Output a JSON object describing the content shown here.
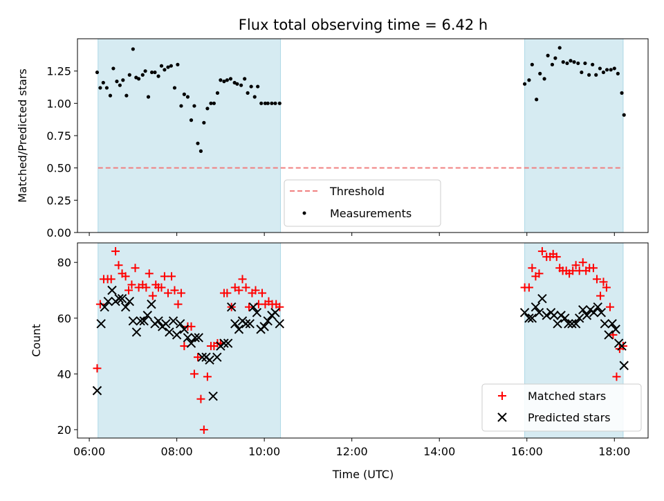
{
  "chart_data": [
    {
      "type": "scatter",
      "title": "Flux total observing time = 6.42 h",
      "xlabel": "",
      "ylabel": "Matched/Predicted stars",
      "xlim": [
        5.73,
        18.77
      ],
      "ylim": [
        0.0,
        1.5
      ],
      "yticks": [
        0.0,
        0.25,
        0.5,
        0.75,
        1.0,
        1.25
      ],
      "ytick_labels": [
        "0.00",
        "0.25",
        "0.50",
        "0.75",
        "1.00",
        "1.25"
      ],
      "xticks": [
        6,
        8,
        10,
        12,
        14,
        16,
        18
      ],
      "shaded_intervals": [
        [
          6.2,
          10.37
        ],
        [
          15.95,
          18.2
        ]
      ],
      "threshold": 0.5,
      "legend_position": "lower center",
      "legend": {
        "threshold": "Threshold",
        "measurements": "Measurements"
      },
      "colors": {
        "shade": "#add8e6",
        "threshold": "#f08080",
        "points": "#000000"
      },
      "series": [
        {
          "name": "Measurements",
          "x": [
            6.18,
            6.25,
            6.32,
            6.4,
            6.48,
            6.55,
            6.63,
            6.7,
            6.77,
            6.85,
            6.92,
            7.0,
            7.07,
            7.13,
            7.22,
            7.28,
            7.35,
            7.43,
            7.5,
            7.58,
            7.65,
            7.72,
            7.8,
            7.87,
            7.95,
            8.02,
            8.1,
            8.17,
            8.25,
            8.33,
            8.4,
            8.48,
            8.55,
            8.62,
            8.7,
            8.78,
            8.85,
            8.93,
            9.0,
            9.08,
            9.15,
            9.23,
            9.32,
            9.38,
            9.47,
            9.55,
            9.62,
            9.7,
            9.78,
            9.85,
            9.93,
            10.02,
            10.08,
            10.17,
            10.25,
            10.35,
            15.95,
            16.05,
            16.12,
            16.22,
            16.3,
            16.4,
            16.48,
            16.58,
            16.65,
            16.75,
            16.83,
            16.92,
            17.0,
            17.08,
            17.17,
            17.25,
            17.33,
            17.42,
            17.5,
            17.58,
            17.67,
            17.75,
            17.83,
            17.92,
            18.0,
            18.08,
            18.17,
            18.22
          ],
          "y": [
            1.24,
            1.12,
            1.16,
            1.12,
            1.06,
            1.27,
            1.17,
            1.14,
            1.18,
            1.06,
            1.22,
            1.42,
            1.2,
            1.19,
            1.22,
            1.25,
            1.05,
            1.24,
            1.24,
            1.21,
            1.29,
            1.26,
            1.28,
            1.29,
            1.12,
            1.3,
            0.98,
            1.07,
            1.05,
            0.87,
            0.98,
            0.69,
            0.63,
            0.85,
            0.96,
            1.0,
            1.0,
            1.08,
            1.18,
            1.17,
            1.18,
            1.19,
            1.16,
            1.15,
            1.14,
            1.19,
            1.08,
            1.13,
            1.05,
            1.13,
            1.0,
            1.0,
            1.0,
            1.0,
            1.0,
            1.0,
            1.15,
            1.18,
            1.3,
            1.03,
            1.23,
            1.19,
            1.37,
            1.3,
            1.35,
            1.43,
            1.32,
            1.31,
            1.33,
            1.32,
            1.31,
            1.24,
            1.31,
            1.22,
            1.3,
            1.22,
            1.27,
            1.24,
            1.26,
            1.26,
            1.27,
            1.23,
            1.08,
            0.91
          ]
        }
      ]
    },
    {
      "type": "scatter",
      "title": "",
      "xlabel": "Time (UTC)",
      "ylabel": "Count",
      "xlim": [
        5.73,
        18.77
      ],
      "ylim": [
        17,
        87
      ],
      "yticks": [
        20,
        40,
        60,
        80
      ],
      "ytick_labels": [
        "20",
        "40",
        "60",
        "80"
      ],
      "xticks": [
        6,
        8,
        10,
        12,
        14,
        16,
        18
      ],
      "xtick_labels": [
        "06:00",
        "08:00",
        "10:00",
        "12:00",
        "14:00",
        "16:00",
        "18:00"
      ],
      "shaded_intervals": [
        [
          6.2,
          10.37
        ],
        [
          15.95,
          18.2
        ]
      ],
      "legend_position": "lower right",
      "colors": {
        "shade": "#add8e6",
        "matched": "#ff0000",
        "predicted": "#000000"
      },
      "series": [
        {
          "name": "Matched stars",
          "marker": "+",
          "x": [
            6.18,
            6.25,
            6.33,
            6.42,
            6.5,
            6.6,
            6.67,
            6.75,
            6.83,
            6.9,
            6.97,
            7.05,
            7.13,
            7.22,
            7.3,
            7.37,
            7.45,
            7.52,
            7.58,
            7.65,
            7.72,
            7.8,
            7.88,
            7.95,
            8.03,
            8.1,
            8.17,
            8.25,
            8.33,
            8.4,
            8.48,
            8.55,
            8.62,
            8.7,
            8.78,
            8.85,
            8.93,
            9.0,
            9.08,
            9.15,
            9.25,
            9.33,
            9.42,
            9.5,
            9.58,
            9.65,
            9.72,
            9.8,
            9.87,
            9.95,
            10.02,
            10.1,
            10.18,
            10.27,
            10.35,
            15.95,
            16.05,
            16.12,
            16.2,
            16.28,
            16.35,
            16.45,
            16.53,
            16.6,
            16.68,
            16.75,
            16.82,
            16.9,
            16.97,
            17.05,
            17.12,
            17.2,
            17.28,
            17.35,
            17.43,
            17.52,
            17.6,
            17.68,
            17.75,
            17.82,
            17.9,
            17.97,
            18.05,
            18.12,
            18.2
          ],
          "y": [
            42,
            65,
            74,
            74,
            74,
            84,
            79,
            76,
            75,
            70,
            72,
            78,
            71,
            72,
            71,
            76,
            68,
            72,
            71,
            71,
            75,
            69,
            75,
            70,
            65,
            69,
            50,
            57,
            57,
            40,
            46,
            31,
            20,
            39,
            50,
            50,
            51,
            51,
            69,
            69,
            64,
            71,
            70,
            74,
            71,
            64,
            69,
            70,
            65,
            69,
            65,
            66,
            65,
            65,
            64,
            71,
            71,
            78,
            75,
            76,
            84,
            82,
            82,
            83,
            82,
            78,
            77,
            77,
            76,
            77,
            79,
            77,
            80,
            77,
            78,
            78,
            74,
            68,
            73,
            71,
            64,
            54,
            39,
            49,
            50
          ]
        },
        {
          "name": "Predicted stars",
          "marker": "x",
          "x": [
            6.18,
            6.27,
            6.35,
            6.43,
            6.52,
            6.6,
            6.68,
            6.75,
            6.83,
            6.92,
            7.0,
            7.08,
            7.17,
            7.25,
            7.33,
            7.42,
            7.5,
            7.58,
            7.67,
            7.75,
            7.83,
            7.92,
            8.0,
            8.08,
            8.17,
            8.25,
            8.33,
            8.42,
            8.5,
            8.58,
            8.67,
            8.75,
            8.83,
            8.92,
            9.0,
            9.08,
            9.17,
            9.25,
            9.33,
            9.42,
            9.5,
            9.58,
            9.67,
            9.75,
            9.83,
            9.92,
            10.0,
            10.08,
            10.17,
            10.25,
            10.35,
            15.95,
            16.05,
            16.12,
            16.2,
            16.28,
            16.35,
            16.45,
            16.55,
            16.62,
            16.7,
            16.78,
            16.87,
            16.95,
            17.03,
            17.12,
            17.2,
            17.28,
            17.37,
            17.45,
            17.53,
            17.62,
            17.7,
            17.78,
            17.87,
            17.95,
            18.03,
            18.1,
            18.17,
            18.22
          ],
          "y": [
            34,
            58,
            64,
            66,
            70,
            66,
            67,
            67,
            64,
            66,
            59,
            55,
            59,
            59,
            61,
            65,
            58,
            59,
            57,
            58,
            55,
            59,
            54,
            58,
            56,
            53,
            51,
            53,
            53,
            46,
            46,
            45,
            32,
            46,
            50,
            51,
            51,
            64,
            58,
            56,
            59,
            58,
            58,
            64,
            62,
            56,
            57,
            59,
            61,
            62,
            58,
            62,
            60,
            60,
            64,
            62,
            67,
            61,
            62,
            61,
            58,
            61,
            60,
            58,
            58,
            58,
            60,
            63,
            61,
            63,
            62,
            64,
            62,
            58,
            54,
            58,
            56,
            51,
            50,
            43
          ]
        }
      ]
    }
  ]
}
